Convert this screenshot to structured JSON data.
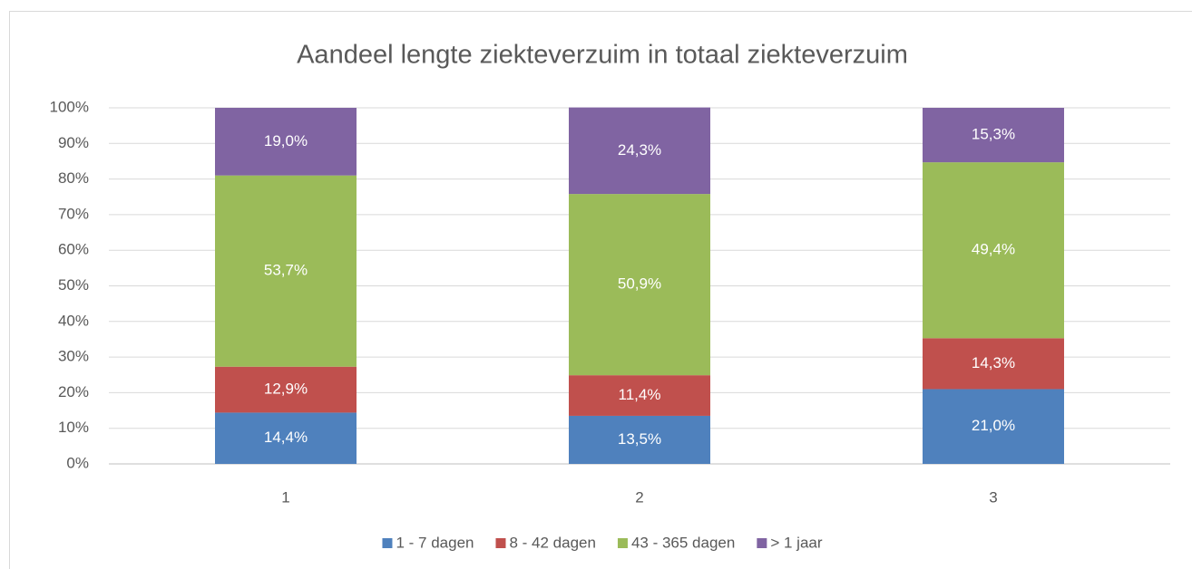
{
  "chart_data": {
    "type": "stacked_bar",
    "title": "Aandeel lengte ziekteverzuim in totaal ziekteverzuim",
    "categories": [
      "1",
      "2",
      "3"
    ],
    "series": [
      {
        "name": "1 - 7 dagen",
        "color": "#4f81bd",
        "values": [
          14.4,
          13.5,
          21.0
        ],
        "value_labels": [
          "14,4%",
          "13,5%",
          "21,0%"
        ]
      },
      {
        "name": "8 - 42 dagen",
        "color": "#c0504d",
        "values": [
          12.9,
          11.4,
          14.3
        ],
        "value_labels": [
          "12,9%",
          "11,4%",
          "14,3%"
        ]
      },
      {
        "name": "43 - 365 dagen",
        "color": "#9bbb59",
        "values": [
          53.7,
          50.9,
          49.4
        ],
        "value_labels": [
          "53,7%",
          "50,9%",
          "49,4%"
        ]
      },
      {
        "name": "> 1 jaar",
        "color": "#8064a2",
        "values": [
          19.0,
          24.3,
          15.3
        ],
        "value_labels": [
          "19,0%",
          "24,3%",
          "15,3%"
        ]
      }
    ],
    "ylim": [
      0,
      100
    ],
    "yticks": [
      {
        "value": 0,
        "label": "0%"
      },
      {
        "value": 10,
        "label": "10%"
      },
      {
        "value": 20,
        "label": "20%"
      },
      {
        "value": 30,
        "label": "30%"
      },
      {
        "value": 40,
        "label": "40%"
      },
      {
        "value": 50,
        "label": "50%"
      },
      {
        "value": 60,
        "label": "60%"
      },
      {
        "value": 70,
        "label": "70%"
      },
      {
        "value": 80,
        "label": "80%"
      },
      {
        "value": 90,
        "label": "90%"
      },
      {
        "value": 100,
        "label": "100%"
      }
    ],
    "grid": true,
    "legend": "bottom"
  }
}
